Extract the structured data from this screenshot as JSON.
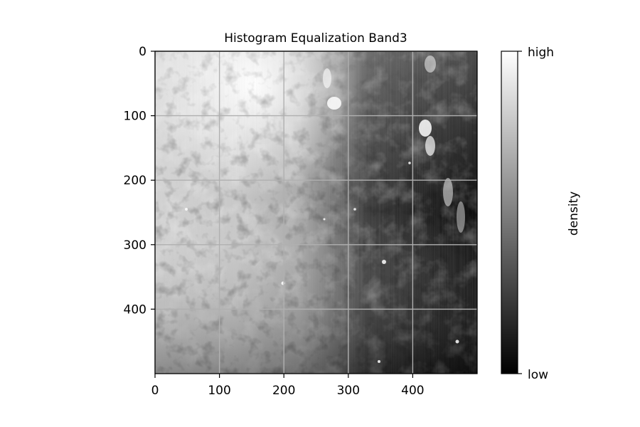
{
  "chart_data": {
    "type": "heatmap",
    "title": "Histogram Equalization Band3",
    "xlabel": "",
    "ylabel": "",
    "xlim": [
      0,
      500
    ],
    "ylim": [
      500,
      0
    ],
    "x_ticks": [
      0,
      100,
      200,
      300,
      400
    ],
    "y_ticks": [
      0,
      100,
      200,
      300,
      400
    ],
    "grid": true,
    "colormap": "gray",
    "colorbar": {
      "label": "density",
      "tick_labels": [
        "high",
        "low"
      ],
      "placement": "right"
    },
    "grid_color": "#b0b0b0"
  }
}
